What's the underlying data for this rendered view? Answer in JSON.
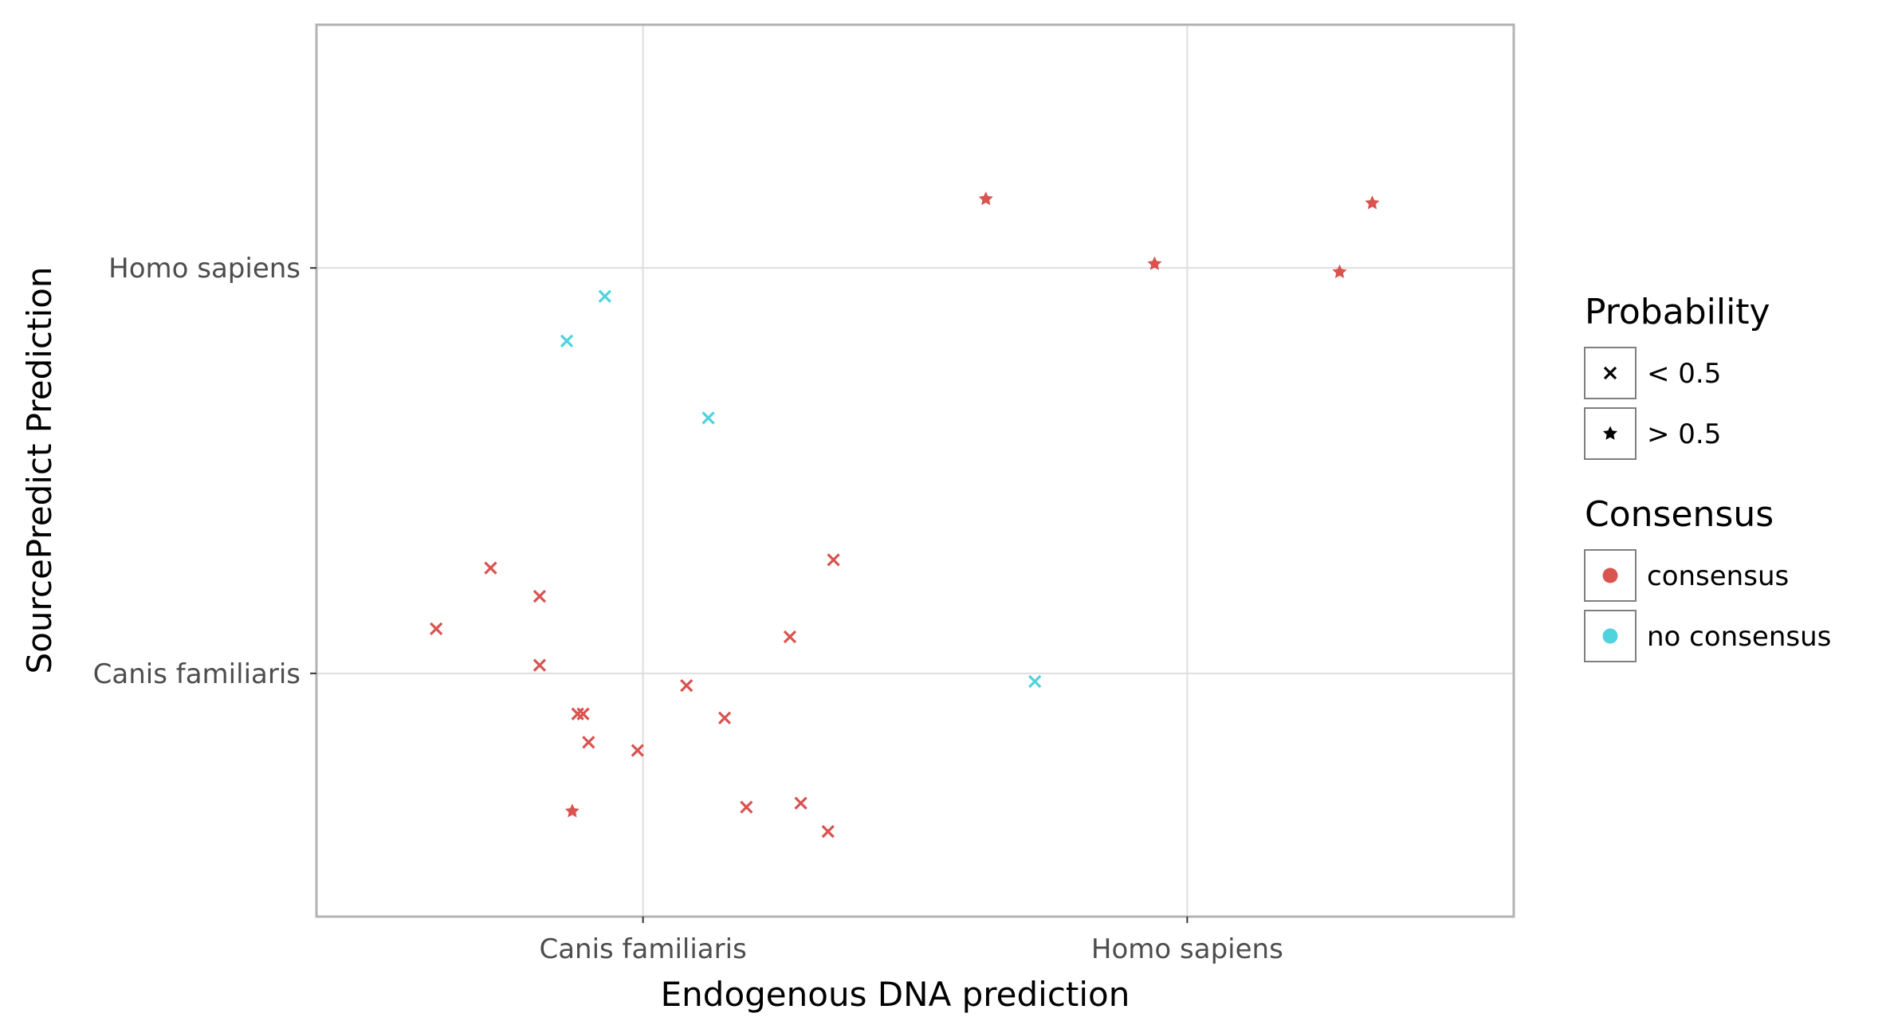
{
  "chart_data": {
    "type": "scatter",
    "title": "",
    "xlabel": "Endogenous DNA prediction",
    "ylabel": "SourcePredict Prediction",
    "x_categories": [
      "Canis familiaris",
      "Homo sapiens"
    ],
    "y_categories": [
      "Canis familiaris",
      "Homo sapiens"
    ],
    "xlim": [
      0.4,
      2.6
    ],
    "ylim": [
      0.4,
      2.6
    ],
    "grid": true,
    "legend_position": "right",
    "colors": {
      "consensus": "#d9534f",
      "no consensus": "#4fd3dc",
      "panel_border": "#b3b3b3",
      "grid": "#dedede"
    },
    "legends": [
      {
        "title": "Probability",
        "entries": [
          {
            "label": "< 0.5",
            "shape": "x"
          },
          {
            "label": "> 0.5",
            "shape": "star"
          }
        ]
      },
      {
        "title": "Consensus",
        "entries": [
          {
            "label": "consensus",
            "color": "#d9534f"
          },
          {
            "label": "no consensus",
            "color": "#4fd3dc"
          }
        ]
      }
    ],
    "points": [
      {
        "x": 1.63,
        "y": 2.17,
        "probability": "> 0.5",
        "consensus": "consensus"
      },
      {
        "x": 2.34,
        "y": 2.16,
        "probability": "> 0.5",
        "consensus": "consensus"
      },
      {
        "x": 1.94,
        "y": 2.01,
        "probability": "> 0.5",
        "consensus": "consensus"
      },
      {
        "x": 2.28,
        "y": 1.99,
        "probability": "> 0.5",
        "consensus": "consensus"
      },
      {
        "x": 0.93,
        "y": 1.93,
        "probability": "< 0.5",
        "consensus": "no consensus"
      },
      {
        "x": 0.86,
        "y": 1.82,
        "probability": "< 0.5",
        "consensus": "no consensus"
      },
      {
        "x": 1.12,
        "y": 1.63,
        "probability": "< 0.5",
        "consensus": "no consensus"
      },
      {
        "x": 0.72,
        "y": 1.26,
        "probability": "< 0.5",
        "consensus": "consensus"
      },
      {
        "x": 1.35,
        "y": 1.28,
        "probability": "< 0.5",
        "consensus": "consensus"
      },
      {
        "x": 0.81,
        "y": 1.19,
        "probability": "< 0.5",
        "consensus": "consensus"
      },
      {
        "x": 0.62,
        "y": 1.11,
        "probability": "< 0.5",
        "consensus": "consensus"
      },
      {
        "x": 1.27,
        "y": 1.09,
        "probability": "< 0.5",
        "consensus": "consensus"
      },
      {
        "x": 0.81,
        "y": 1.02,
        "probability": "< 0.5",
        "consensus": "consensus"
      },
      {
        "x": 1.72,
        "y": 0.98,
        "probability": "< 0.5",
        "consensus": "no consensus"
      },
      {
        "x": 1.08,
        "y": 0.97,
        "probability": "< 0.5",
        "consensus": "consensus"
      },
      {
        "x": 1.15,
        "y": 0.89,
        "probability": "< 0.5",
        "consensus": "consensus"
      },
      {
        "x": 0.88,
        "y": 0.9,
        "probability": "< 0.5",
        "consensus": "consensus"
      },
      {
        "x": 0.89,
        "y": 0.9,
        "probability": "< 0.5",
        "consensus": "consensus"
      },
      {
        "x": 0.9,
        "y": 0.83,
        "probability": "< 0.5",
        "consensus": "consensus"
      },
      {
        "x": 0.99,
        "y": 0.81,
        "probability": "< 0.5",
        "consensus": "consensus"
      },
      {
        "x": 0.87,
        "y": 0.66,
        "probability": "> 0.5",
        "consensus": "consensus"
      },
      {
        "x": 1.29,
        "y": 0.68,
        "probability": "< 0.5",
        "consensus": "consensus"
      },
      {
        "x": 1.19,
        "y": 0.67,
        "probability": "< 0.5",
        "consensus": "consensus"
      },
      {
        "x": 1.34,
        "y": 0.61,
        "probability": "< 0.5",
        "consensus": "consensus"
      }
    ]
  }
}
